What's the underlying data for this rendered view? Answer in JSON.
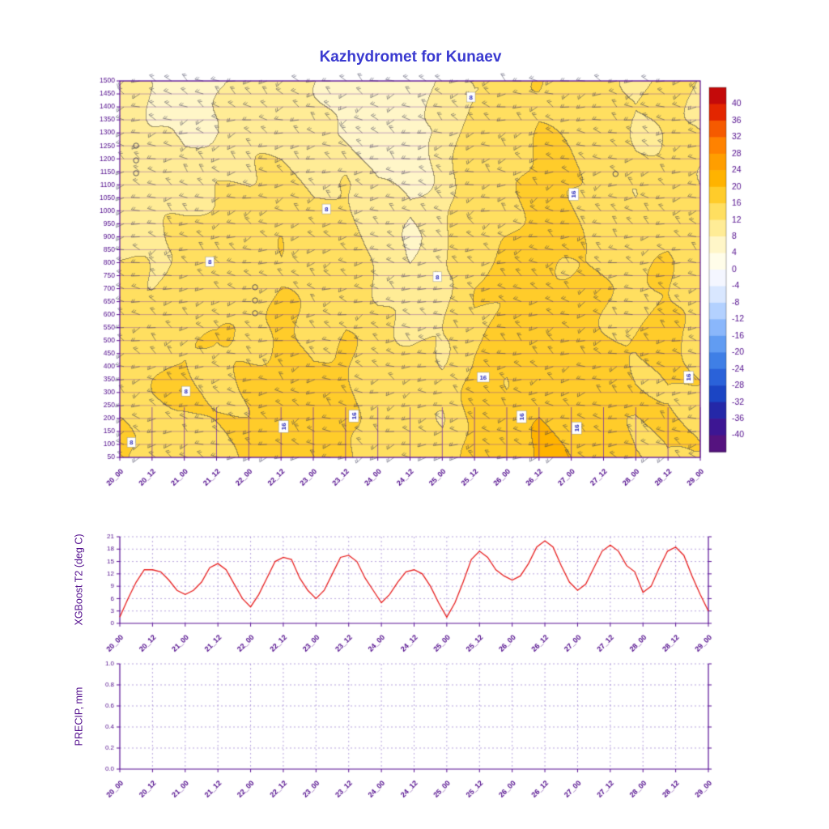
{
  "title": "Kazhydromet for Kunaev",
  "time_ticks": [
    "20_00",
    "20_12",
    "21_00",
    "21_12",
    "22_00",
    "22_12",
    "23_00",
    "23_12",
    "24_00",
    "24_12",
    "25_00",
    "25_12",
    "26_00",
    "26_12",
    "27_00",
    "27_12",
    "28_00",
    "28_12",
    "29_00"
  ],
  "colors": {
    "title": "#3a3ad0",
    "axis_text": "#520d8d",
    "frame": "#5a1196",
    "grid_dash": "#9a7ed0",
    "level_line": "#6a24a8",
    "t2_line": "#e82020",
    "barb": "#3c3c58",
    "contour_label": "#2d2db8"
  },
  "upper_panel": {
    "y_tick_labels": [
      "1500",
      "1450",
      "1400",
      "1350",
      "1300",
      "1250",
      "1200",
      "1150",
      "1100",
      "1050",
      "1000",
      "950",
      "900",
      "850",
      "800",
      "750",
      "700",
      "650",
      "600",
      "550",
      "500",
      "450",
      "400",
      "350",
      "300",
      "250",
      "200",
      "150",
      "100",
      "50"
    ],
    "contour_labels": [
      {
        "text": "8",
        "fx": 0.605,
        "fy": 0.043,
        "rot": 0
      },
      {
        "text": "8",
        "fx": 0.356,
        "fy": 0.34,
        "rot": 0
      },
      {
        "text": "8",
        "fx": 0.155,
        "fy": 0.48,
        "rot": 0
      },
      {
        "text": "8",
        "fx": 0.547,
        "fy": 0.52,
        "rot": 0
      },
      {
        "text": "8",
        "fx": 0.114,
        "fy": 0.824,
        "rot": 0
      },
      {
        "text": "8",
        "fx": 0.02,
        "fy": 0.96,
        "rot": 0
      },
      {
        "text": "16",
        "fx": 0.782,
        "fy": 0.301,
        "rot": 90
      },
      {
        "text": "16",
        "fx": 0.626,
        "fy": 0.787,
        "rot": 0
      },
      {
        "text": "16",
        "fx": 0.98,
        "fy": 0.787,
        "rot": 90
      },
      {
        "text": "16",
        "fx": 0.282,
        "fy": 0.918,
        "rot": 90
      },
      {
        "text": "16",
        "fx": 0.403,
        "fy": 0.89,
        "rot": 90
      },
      {
        "text": "16",
        "fx": 0.692,
        "fy": 0.892,
        "rot": 90
      },
      {
        "text": "16",
        "fx": 0.787,
        "fy": 0.922,
        "rot": 90
      }
    ],
    "calm_circles": [
      {
        "fx": 0.028,
        "fy": 0.172
      },
      {
        "fx": 0.028,
        "fy": 0.211
      },
      {
        "fx": 0.028,
        "fy": 0.245
      },
      {
        "fx": 0.233,
        "fy": 0.548
      },
      {
        "fx": 0.233,
        "fy": 0.583
      },
      {
        "fx": 0.233,
        "fy": 0.617
      },
      {
        "fx": 0.854,
        "fy": 0.247
      }
    ]
  },
  "colorbar": {
    "tick_labels": [
      "40",
      "36",
      "32",
      "28",
      "24",
      "20",
      "16",
      "12",
      "8",
      "4",
      "0",
      "-4",
      "-8",
      "-12",
      "-16",
      "-20",
      "-24",
      "-28",
      "-32",
      "-36",
      "-40"
    ],
    "band_colors": [
      "#c40a0a",
      "#e32600",
      "#f55a00",
      "#ff8200",
      "#ff9e00",
      "#ffb300",
      "#ffcc2a",
      "#ffdf60",
      "#ffec96",
      "#fff6c8",
      "#fffde9",
      "#f4f6ff",
      "#d9e7ff",
      "#b3d1ff",
      "#8ab7fb",
      "#619cf2",
      "#3f7fe6",
      "#2a62d9",
      "#1b45c4",
      "#2428a8",
      "#3d1693",
      "#55137f"
    ]
  },
  "t2_panel": {
    "ylabel": "XGBoost T2 (deg C)",
    "y_tick_labels": [
      "0",
      "3",
      "6",
      "9",
      "12",
      "15",
      "18",
      "21"
    ],
    "ymin": 0,
    "ymax": 21
  },
  "precip_panel": {
    "ylabel": "PRECIP, mm",
    "y_tick_labels": [
      "0.0",
      "0.2",
      "0.4",
      "0.6",
      "0.8",
      "1.0"
    ],
    "ymin": 0,
    "ymax": 1
  },
  "chart_data": [
    {
      "type": "heatmap",
      "title": "Kazhydromet for Kunaev",
      "x": [
        "20_00",
        "20_12",
        "21_00",
        "21_12",
        "22_00",
        "22_12",
        "23_00",
        "23_12",
        "24_00",
        "24_12",
        "25_00",
        "25_12",
        "26_00",
        "26_12",
        "27_00",
        "27_12",
        "28_00",
        "28_12",
        "29_00"
      ],
      "y_heights": [
        1500,
        1300,
        1100,
        900,
        700,
        500,
        300,
        50
      ],
      "unit": "deg C",
      "contour_interval": 4,
      "labeled_contours": [
        8,
        16
      ],
      "ylim": [
        50,
        1500
      ],
      "colorbar_range": [
        -40,
        40
      ],
      "values": [
        [
          9,
          7,
          6,
          7,
          8,
          9,
          8,
          7,
          6,
          5,
          9,
          13,
          14,
          15,
          14,
          13,
          12,
          13,
          11
        ],
        [
          10,
          8,
          7,
          9,
          10,
          10,
          9,
          8,
          7,
          6,
          9,
          14,
          14,
          16,
          15,
          13,
          12,
          13,
          11
        ],
        [
          11,
          9,
          10,
          12,
          12,
          13,
          11,
          13,
          8,
          7,
          10,
          15,
          15,
          17,
          16,
          14,
          13,
          14,
          12
        ],
        [
          12,
          11,
          13,
          15,
          13,
          15,
          13,
          15,
          9,
          8,
          11,
          15,
          16,
          17,
          16,
          15,
          14,
          15,
          13
        ],
        [
          13,
          13,
          15,
          14,
          14,
          16,
          14,
          15,
          11,
          10,
          12,
          16,
          16,
          18,
          17,
          16,
          15,
          16,
          14
        ],
        [
          14,
          15,
          16,
          15,
          16,
          17,
          15,
          16,
          13,
          12,
          12,
          16,
          17,
          19,
          17,
          16,
          16,
          17,
          15
        ],
        [
          15,
          16,
          16,
          16,
          17,
          18,
          16,
          17,
          14,
          13,
          13,
          17,
          17,
          20,
          18,
          17,
          16,
          17,
          15
        ],
        [
          17,
          15,
          14,
          16,
          17,
          18,
          17,
          17,
          15,
          14,
          13,
          17,
          18,
          21,
          19,
          18,
          16,
          17,
          15
        ]
      ]
    },
    {
      "type": "line",
      "name": "XGBoost T2 (deg C)",
      "x_start": "20_00",
      "x_end": "29_00",
      "x_step_hours": 3,
      "ylim": [
        0,
        21
      ],
      "values": [
        1.5,
        6,
        10,
        13,
        13,
        12.5,
        10.5,
        8,
        7,
        8,
        10,
        13.5,
        14.5,
        13,
        9.5,
        6,
        4,
        7,
        11,
        15,
        16,
        15.5,
        11,
        8,
        6,
        8,
        12,
        16,
        16.5,
        15,
        11,
        8,
        5,
        7,
        10,
        12.5,
        13,
        12,
        9,
        5,
        1.5,
        5,
        10,
        15.5,
        17.5,
        16,
        13,
        11.5,
        10.5,
        11.5,
        14.5,
        18.5,
        20,
        18.5,
        14,
        10,
        8,
        9.5,
        13.5,
        17.5,
        19,
        17.5,
        14,
        12.5,
        7.5,
        9,
        13.5,
        17.5,
        18.5,
        16.5,
        11.5,
        7,
        3
      ]
    },
    {
      "type": "line",
      "name": "PRECIP, mm",
      "x_start": "20_00",
      "x_end": "29_00",
      "ylim": [
        0,
        1
      ],
      "values": [
        0,
        0,
        0,
        0,
        0,
        0,
        0,
        0,
        0,
        0,
        0,
        0,
        0,
        0,
        0,
        0,
        0,
        0,
        0
      ]
    }
  ]
}
